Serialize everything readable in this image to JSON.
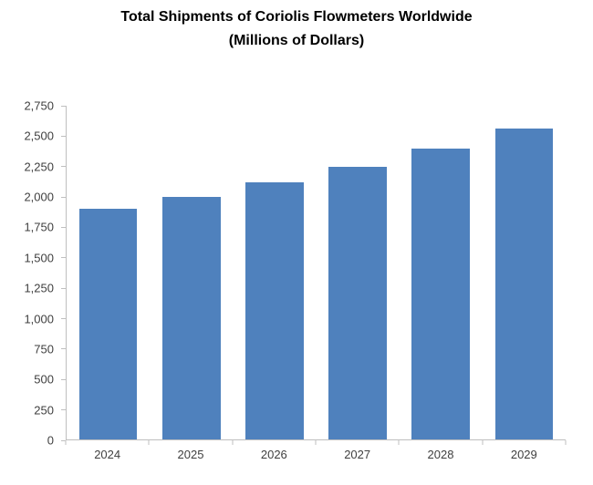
{
  "chart_data": {
    "type": "bar",
    "title": "Total Shipments of Coriolis Flowmeters Worldwide",
    "subtitle": "(Millions of Dollars)",
    "categories": [
      "2024",
      "2025",
      "2026",
      "2027",
      "2028",
      "2029"
    ],
    "values": [
      1900,
      2000,
      2120,
      2250,
      2400,
      2560
    ],
    "xlabel": "",
    "ylabel": "",
    "ylim": [
      0,
      2750
    ],
    "ytick_step": 250,
    "ytick_labels": [
      "0",
      "250",
      "500",
      "750",
      "1,000",
      "1,250",
      "1,500",
      "1,750",
      "2,000",
      "2,250",
      "2,500",
      "2,750"
    ],
    "grid": false,
    "legend": false,
    "colors": {
      "bar": "#4F81BD",
      "axis": "#BFBFBF",
      "tick_label": "#3F3F3F",
      "title": "#000000",
      "background": "#FFFFFF"
    }
  }
}
